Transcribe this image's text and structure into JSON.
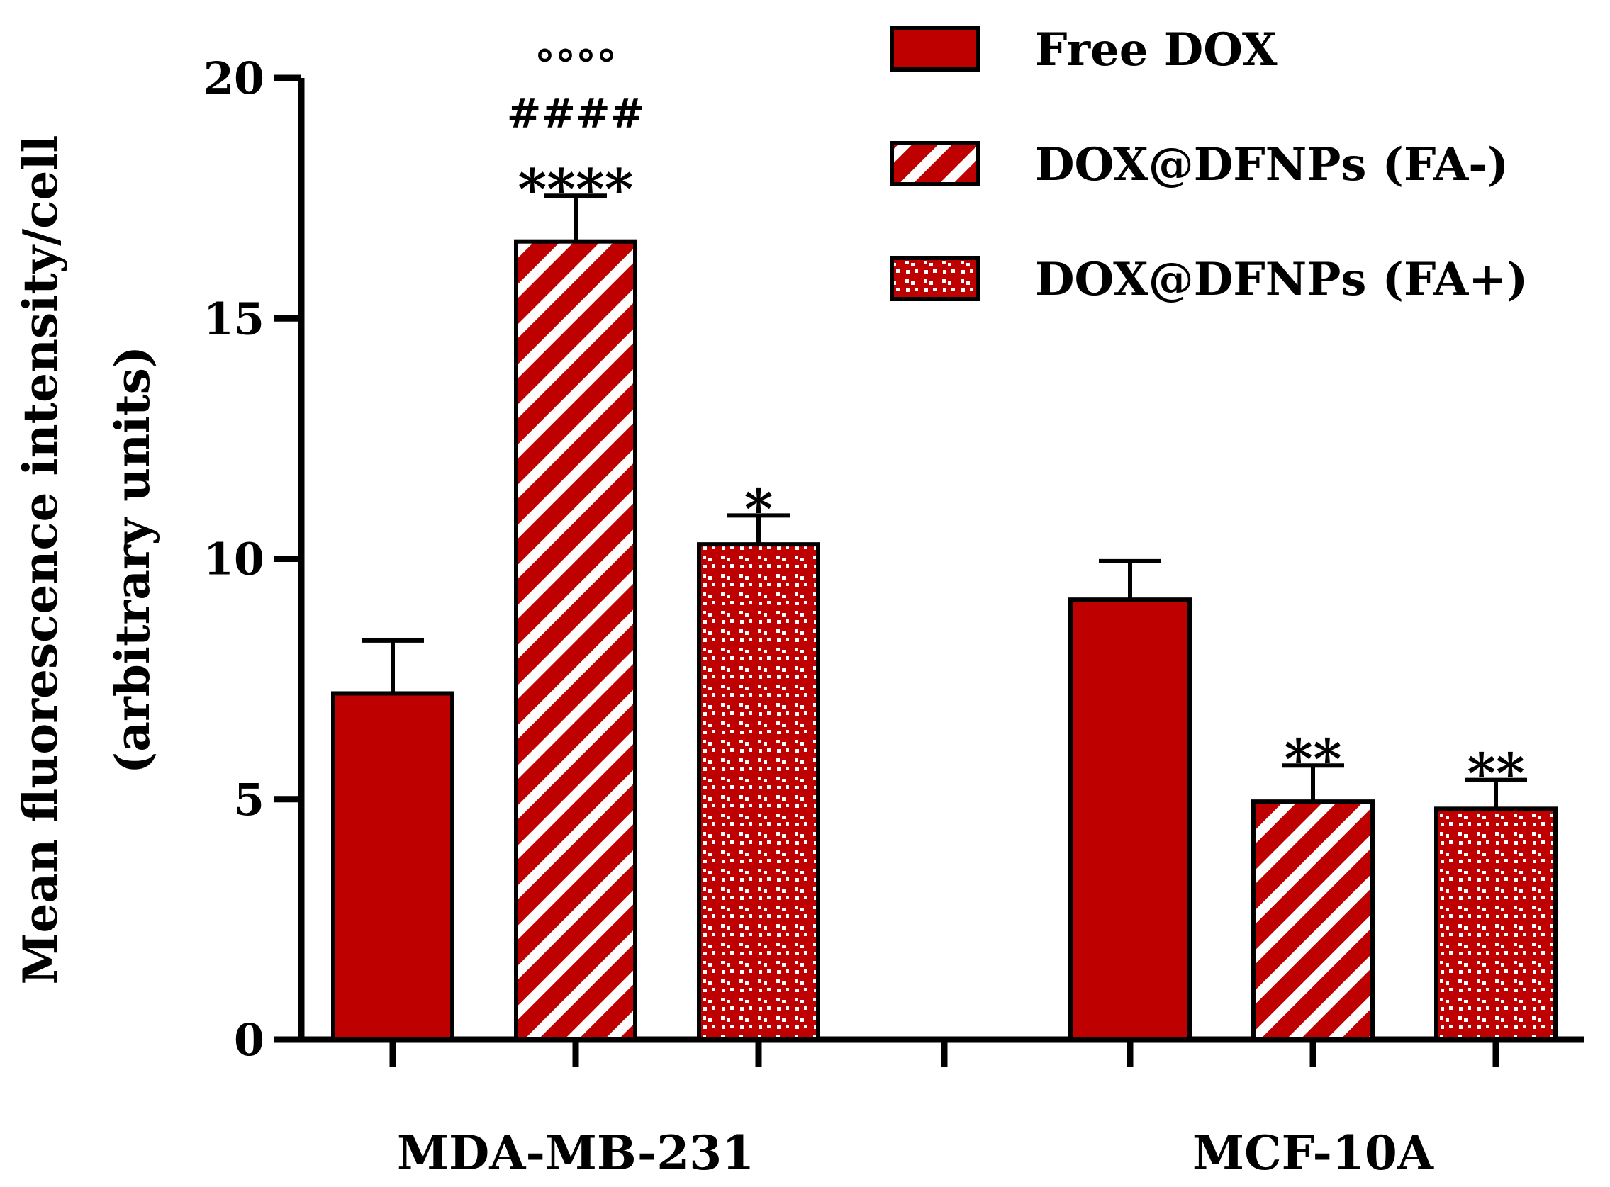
{
  "chart_data": {
    "type": "bar",
    "title": "",
    "xlabel": "",
    "ylabel": [
      "Mean fluorescence intensity/cell",
      "(arbitrary units)"
    ],
    "ylim": [
      0,
      20
    ],
    "yticks": [
      0,
      5,
      10,
      15,
      20
    ],
    "groups": [
      "MDA-MB-231",
      "MCF-10A"
    ],
    "colors": {
      "bar": "#bf0000",
      "stroke": "#000000",
      "pattern_light": "#ffffff"
    },
    "series": [
      {
        "name": "Free DOX",
        "pattern": "solid",
        "values": [
          7.2,
          9.15
        ],
        "errors": [
          1.1,
          0.8
        ],
        "annotations": [
          [],
          []
        ]
      },
      {
        "name": "DOX@DFNPs (FA-)",
        "pattern": "stripes",
        "values": [
          16.6,
          4.95
        ],
        "errors": [
          0.95,
          0.75
        ],
        "annotations": [
          [
            "°°°°",
            "####",
            "****"
          ],
          [
            "**"
          ]
        ]
      },
      {
        "name": "DOX@DFNPs (FA+)",
        "pattern": "dots",
        "values": [
          10.3,
          4.8
        ],
        "errors": [
          0.6,
          0.6
        ],
        "annotations": [
          [
            "*"
          ],
          [
            "**"
          ]
        ]
      }
    ],
    "legend": "top-right"
  }
}
